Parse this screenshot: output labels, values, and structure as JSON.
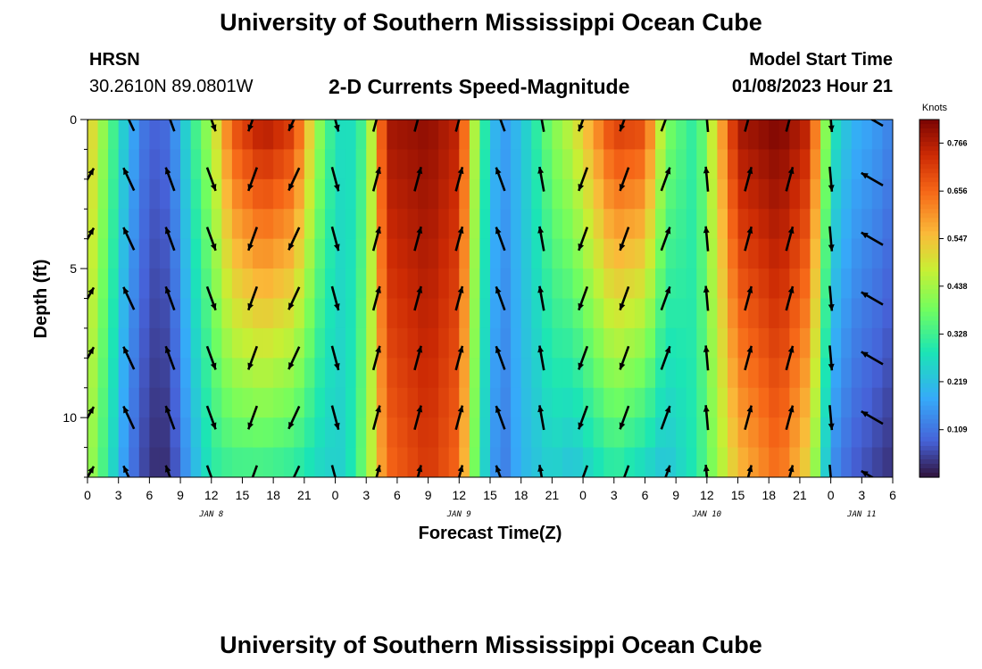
{
  "header": {
    "title": "University of Southern Mississippi Ocean Cube",
    "station": "HRSN",
    "coords": "30.2610N  89.0801W",
    "subtitle": "2-D Currents Speed-Magnitude",
    "model_start_label": "Model Start Time",
    "model_start_value": "01/08/2023 Hour 21"
  },
  "footer": {
    "title": "University of Southern Mississippi Ocean Cube"
  },
  "chart_data": {
    "type": "heatmap",
    "title": "2-D Currents Speed-Magnitude",
    "xlabel": "Forecast Time(Z)",
    "ylabel": "Depth (ft)",
    "x_hours_range": [
      0,
      78
    ],
    "ylim": [
      0,
      12
    ],
    "y_inverted": true,
    "x_ticks": [
      "0",
      "3",
      "6",
      "9",
      "12",
      "15",
      "18",
      "21",
      "0",
      "3",
      "6",
      "9",
      "12",
      "15",
      "18",
      "21",
      "0",
      "3",
      "6",
      "9",
      "12",
      "15",
      "18",
      "21",
      "0",
      "3",
      "6"
    ],
    "y_ticks": [
      {
        "value": 0,
        "label": "0"
      },
      {
        "value": 5,
        "label": "5"
      },
      {
        "value": 10,
        "label": "10"
      }
    ],
    "date_labels": [
      {
        "hour": 12,
        "label": "JAN 8"
      },
      {
        "hour": 36,
        "label": "JAN 9"
      },
      {
        "hour": 60,
        "label": "JAN 10"
      },
      {
        "hour": 75,
        "label": "JAN 11"
      }
    ],
    "colorbar": {
      "unit": "Knots",
      "min": 0.0,
      "max": 0.82,
      "ticks": [
        "0.766",
        "0.656",
        "0.547",
        "0.438",
        "0.328",
        "0.219",
        "0.109"
      ],
      "tick_values": [
        0.766,
        0.656,
        0.547,
        0.438,
        0.328,
        0.219,
        0.109
      ]
    },
    "speed_profile_knots": [
      {
        "hour": 0,
        "top": 0.55,
        "bottom": 0.45
      },
      {
        "hour": 2,
        "top": 0.38,
        "bottom": 0.3
      },
      {
        "hour": 4,
        "top": 0.2,
        "bottom": 0.12
      },
      {
        "hour": 6,
        "top": 0.08,
        "bottom": 0.03
      },
      {
        "hour": 8,
        "top": 0.1,
        "bottom": 0.03
      },
      {
        "hour": 10,
        "top": 0.3,
        "bottom": 0.18
      },
      {
        "hour": 12,
        "top": 0.45,
        "bottom": 0.3
      },
      {
        "hour": 14,
        "top": 0.68,
        "bottom": 0.32
      },
      {
        "hour": 17,
        "top": 0.78,
        "bottom": 0.32
      },
      {
        "hour": 20,
        "top": 0.72,
        "bottom": 0.3
      },
      {
        "hour": 23,
        "top": 0.35,
        "bottom": 0.25
      },
      {
        "hour": 25,
        "top": 0.25,
        "bottom": 0.25
      },
      {
        "hour": 27,
        "top": 0.35,
        "bottom": 0.4
      },
      {
        "hour": 29,
        "top": 0.78,
        "bottom": 0.65
      },
      {
        "hour": 33,
        "top": 0.8,
        "bottom": 0.72
      },
      {
        "hour": 36,
        "top": 0.75,
        "bottom": 0.65
      },
      {
        "hour": 38,
        "top": 0.35,
        "bottom": 0.3
      },
      {
        "hour": 40,
        "top": 0.15,
        "bottom": 0.1
      },
      {
        "hour": 42,
        "top": 0.22,
        "bottom": 0.2
      },
      {
        "hour": 45,
        "top": 0.4,
        "bottom": 0.25
      },
      {
        "hour": 47,
        "top": 0.48,
        "bottom": 0.22
      },
      {
        "hour": 51,
        "top": 0.72,
        "bottom": 0.3
      },
      {
        "hour": 54,
        "top": 0.7,
        "bottom": 0.25
      },
      {
        "hour": 56,
        "top": 0.4,
        "bottom": 0.22
      },
      {
        "hour": 59,
        "top": 0.3,
        "bottom": 0.3
      },
      {
        "hour": 63,
        "top": 0.78,
        "bottom": 0.55
      },
      {
        "hour": 67,
        "top": 0.82,
        "bottom": 0.65
      },
      {
        "hour": 70,
        "top": 0.75,
        "bottom": 0.5
      },
      {
        "hour": 72,
        "top": 0.3,
        "bottom": 0.15
      },
      {
        "hour": 74,
        "top": 0.2,
        "bottom": 0.08
      },
      {
        "hour": 77,
        "top": 0.15,
        "bottom": 0.04
      },
      {
        "hour": 78,
        "top": 0.12,
        "bottom": 0.03
      }
    ],
    "vector_hours": [
      0,
      4,
      8,
      12,
      16,
      20,
      24,
      28,
      32,
      36,
      40,
      44,
      48,
      52,
      56,
      60,
      64,
      68,
      72,
      76
    ],
    "vector_depths": [
      0,
      2,
      4,
      6,
      8,
      10,
      12
    ],
    "vector_direction_deg": [
      60,
      115,
      110,
      290,
      250,
      245,
      285,
      75,
      75,
      75,
      110,
      100,
      250,
      250,
      70,
      95,
      75,
      75,
      275,
      150
    ]
  }
}
